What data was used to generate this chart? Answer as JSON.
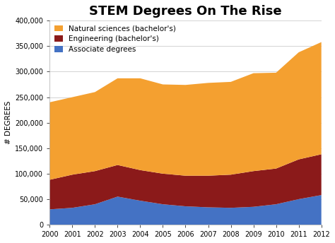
{
  "title": "STEM Degrees On The Rise",
  "ylabel": "# DEGREES",
  "years": [
    2000,
    2001,
    2002,
    2003,
    2004,
    2005,
    2006,
    2007,
    2008,
    2009,
    2010,
    2011,
    2012
  ],
  "associate": [
    30000,
    33000,
    40000,
    55000,
    47000,
    40000,
    36000,
    34000,
    33000,
    35000,
    40000,
    50000,
    58000
  ],
  "engineering": [
    58000,
    65000,
    65000,
    62000,
    60000,
    60000,
    60000,
    62000,
    65000,
    70000,
    70000,
    78000,
    80000
  ],
  "natural_sciences": [
    152000,
    152000,
    155000,
    170000,
    180000,
    175000,
    178000,
    182000,
    182000,
    192000,
    188000,
    210000,
    220000
  ],
  "color_associate": "#4472c4",
  "color_engineering": "#8b1a1a",
  "color_natural": "#f4a030",
  "legend_natural": "Natural sciences (bachelor's)",
  "legend_engineering": "Engineering (bachelor's)",
  "legend_associate": "Associate degrees",
  "ylim": [
    0,
    400000
  ],
  "yticks": [
    0,
    50000,
    100000,
    150000,
    200000,
    250000,
    300000,
    350000,
    400000
  ],
  "title_fontsize": 13,
  "axis_label_fontsize": 7.5,
  "tick_fontsize": 7,
  "legend_fontsize": 7.5
}
